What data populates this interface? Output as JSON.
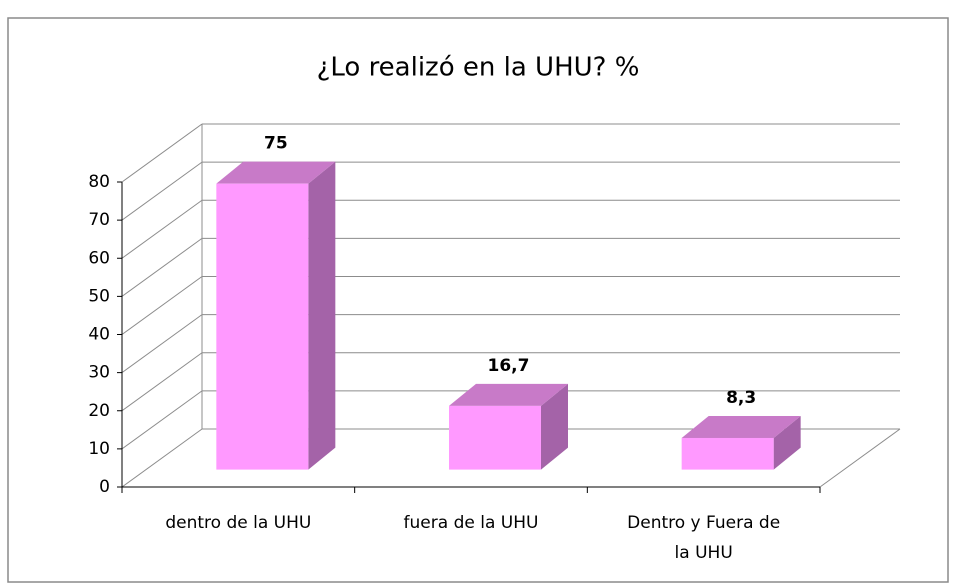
{
  "chart_data": {
    "type": "bar3d",
    "title": "¿Lo realizó en la UHU? %",
    "categories": [
      "dentro de la UHU",
      "fuera de la UHU",
      "Dentro y Fuera de la UHU"
    ],
    "values": [
      75,
      16.7,
      8.3
    ],
    "value_labels": [
      "75",
      "16,7",
      "8,3"
    ],
    "color": "#ff99ff",
    "ylim": [
      0,
      80
    ],
    "yticks": [
      0,
      10,
      20,
      30,
      40,
      50,
      60,
      70,
      80
    ],
    "grid": true
  }
}
